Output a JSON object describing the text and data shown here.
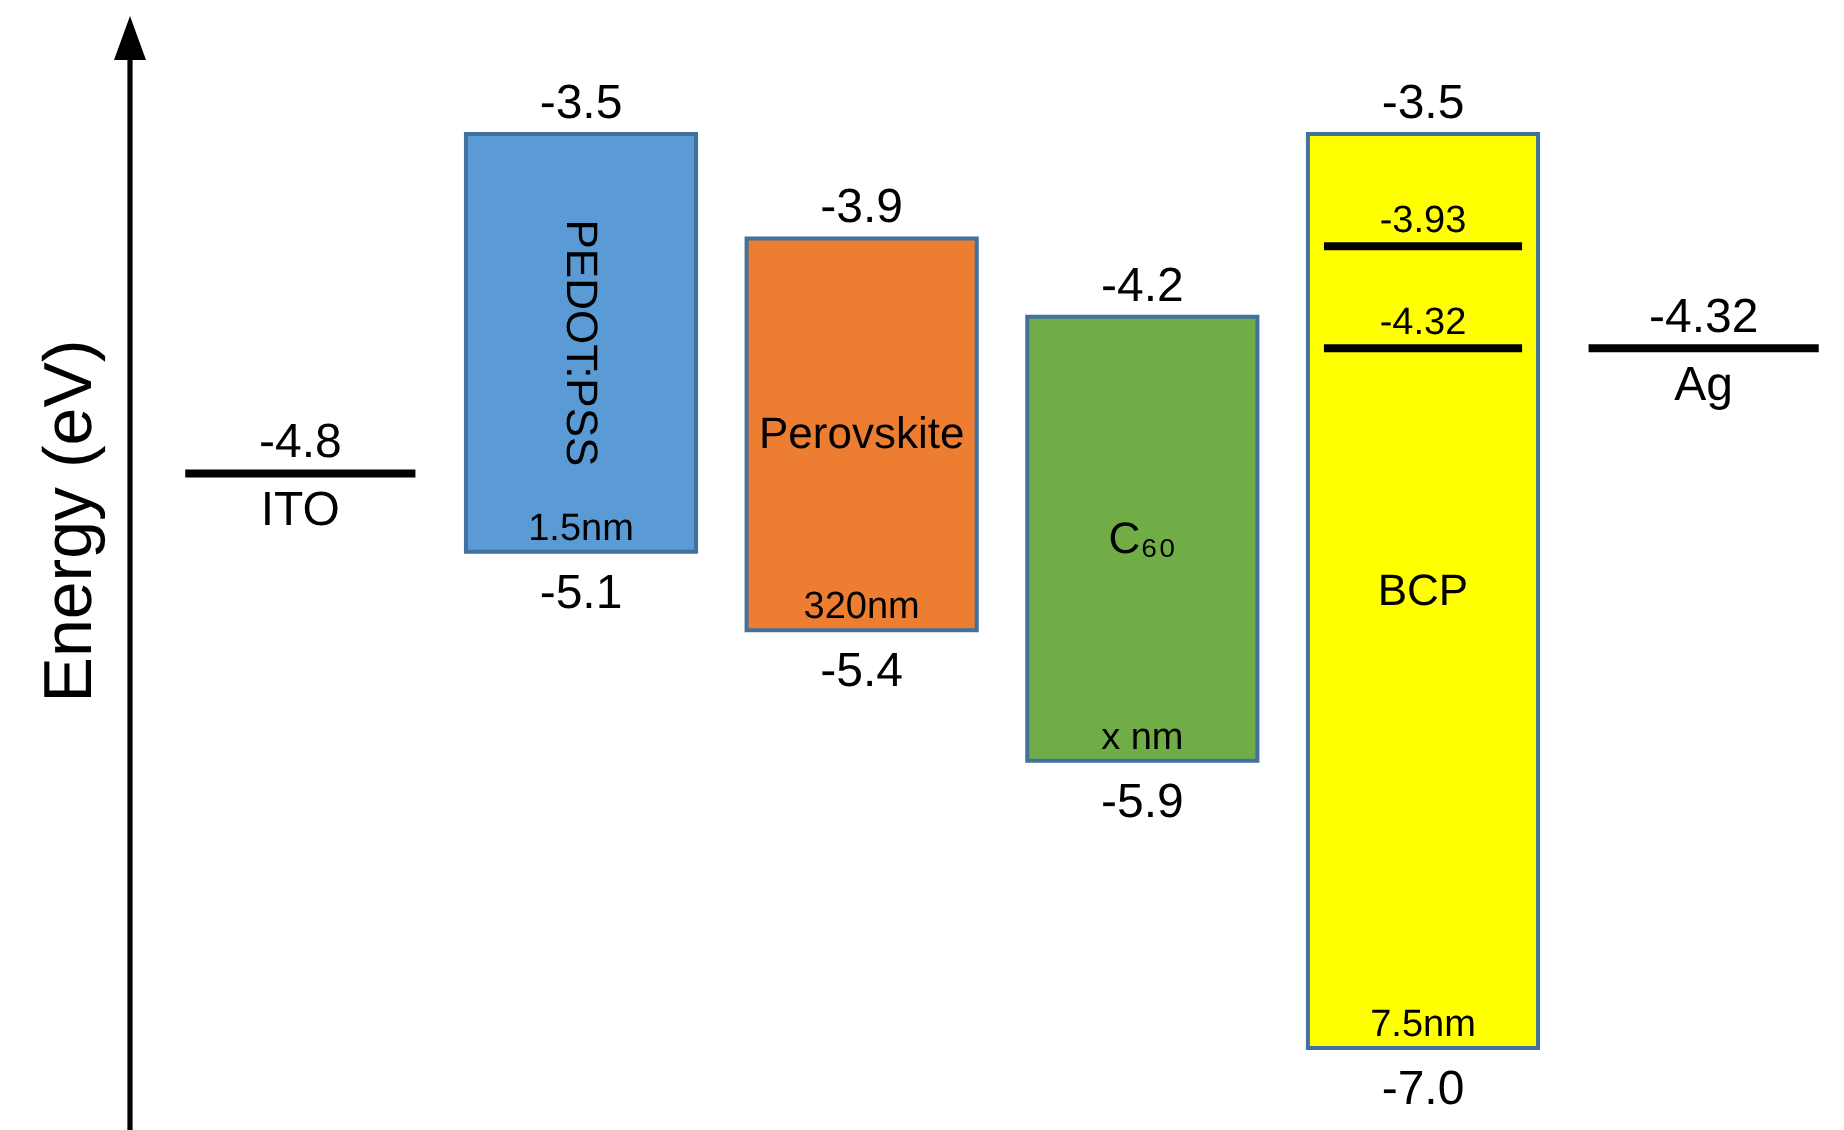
{
  "chart_data": {
    "type": "other",
    "ylabel": "Energy (eV)",
    "categories": [
      "ITO",
      "PEDOT:PSS",
      "Perovskite",
      "C₆₀",
      "BCP",
      "Ag"
    ],
    "series": [
      {
        "colors": [
          "#000000",
          "#5b9bd5",
          "#ed7d31",
          "#70ad47",
          "#ffff00",
          "#000000"
        ],
        "values": [
          -4.8,
          -3.5,
          -3.9,
          -4.2,
          -3.5,
          -4.32
        ],
        "value_labels": [
          "-4.8",
          "-3.5",
          "-3.9",
          "-4.2",
          "-3.5",
          "-4.32"
        ]
      },
      {
        "values": [
          null,
          -5.1,
          -5.4,
          -5.9,
          -7.0,
          null
        ],
        "value_labels": [
          null,
          "-5.1",
          "-5.4",
          "-5.9",
          "-7.0",
          null
        ]
      },
      {
        "values": [
          null,
          null,
          null,
          null,
          -3.93,
          null
        ],
        "value_labels": [
          null,
          null,
          null,
          null,
          "-3.93",
          null
        ]
      },
      {
        "values": [
          null,
          null,
          null,
          null,
          -4.32,
          null
        ],
        "value_labels": [
          null,
          null,
          null,
          null,
          "-4.32",
          null
        ]
      }
    ],
    "annotations": [
      "1.5nm",
      "320nm",
      "x nm",
      "7.5nm"
    ]
  }
}
